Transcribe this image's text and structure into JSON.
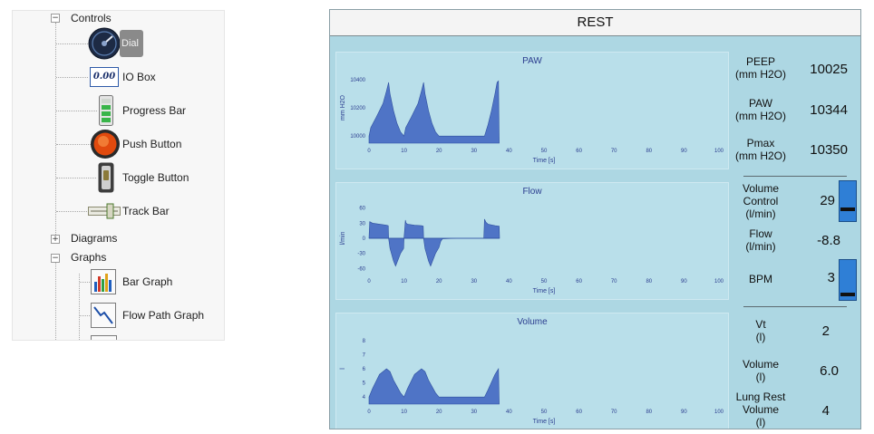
{
  "tree": {
    "controls": {
      "label": "Controls",
      "items": [
        {
          "label": "Dial",
          "icon": "dial-icon"
        },
        {
          "label": "IO Box",
          "icon": "io-box-icon"
        },
        {
          "label": "Progress Bar",
          "icon": "progress-bar-icon"
        },
        {
          "label": "Push Button",
          "icon": "push-button-icon"
        },
        {
          "label": "Toggle Button",
          "icon": "toggle-button-icon"
        },
        {
          "label": "Track Bar",
          "icon": "track-bar-icon"
        }
      ],
      "io_box_icon_text": "0.00"
    },
    "diagrams": {
      "label": "Diagrams"
    },
    "graphs": {
      "label": "Graphs",
      "items": [
        {
          "label": "Bar Graph",
          "icon": "bar-graph-icon"
        },
        {
          "label": "Flow Path Graph",
          "icon": "flow-path-graph-icon"
        }
      ]
    }
  },
  "ventilator": {
    "title": "REST",
    "colors": {
      "panel": "#add7e3",
      "chart_fill": "#4f74c6",
      "slider": "#2f7fd6"
    },
    "readouts": {
      "peep": {
        "label1": "PEEP",
        "label2": "(mm H2O)",
        "value": "10025"
      },
      "paw": {
        "label1": "PAW",
        "label2": "(mm H2O)",
        "value": "10344"
      },
      "pmax": {
        "label1": "Pmax",
        "label2": "(mm H2O)",
        "value": "10350"
      },
      "volume_control": {
        "label1": "Volume",
        "label2": "Control",
        "label3": "(l/min)",
        "value": "29",
        "slider_level": 0.28
      },
      "flow": {
        "label1": "Flow",
        "label2": "(l/min)",
        "value": "-8.8"
      },
      "bpm": {
        "label1": "BPM",
        "value": "3",
        "slider_level": 0.1
      },
      "vt": {
        "label1": "Vt",
        "label2": "(l)",
        "value": "2"
      },
      "volume": {
        "label1": "Volume",
        "label2": "(l)",
        "value": "6.0"
      },
      "lung_rest_volume": {
        "label1": "Lung Rest",
        "label2": "Volume",
        "label3": "(l)",
        "value": "4"
      }
    }
  },
  "chart_data": [
    {
      "type": "area",
      "title": "PAW",
      "xlabel": "Time [s]",
      "ylabel": "mm H2O",
      "xlim": [
        0,
        100
      ],
      "ylim": [
        9950,
        10450
      ],
      "xticks": [
        0,
        10,
        20,
        30,
        40,
        50,
        60,
        70,
        80,
        90,
        100
      ],
      "yticks": [
        10000,
        10200,
        10400
      ],
      "baseline": 9950,
      "series": [
        {
          "x": [
            0,
            0.5,
            2,
            4,
            5,
            5.6,
            6,
            7,
            8,
            9,
            10,
            10.5,
            12,
            14,
            15,
            15.6,
            16,
            17,
            18,
            19,
            20,
            20.5,
            21,
            25,
            30,
            33,
            34,
            35,
            36,
            36.6,
            37,
            37.2
          ],
          "y": [
            10000,
            10060,
            10130,
            10230,
            10320,
            10380,
            10300,
            10180,
            10090,
            10030,
            10000,
            10060,
            10130,
            10230,
            10320,
            10380,
            10300,
            10180,
            10090,
            10030,
            10000,
            10000,
            10000,
            10000,
            10000,
            10000,
            10080,
            10180,
            10300,
            10380,
            10390,
            9950
          ]
        }
      ]
    },
    {
      "type": "area",
      "title": "Flow",
      "xlabel": "Time [s]",
      "ylabel": "l/min",
      "xlim": [
        0,
        100
      ],
      "ylim": [
        -70,
        70
      ],
      "xticks": [
        0,
        10,
        20,
        30,
        40,
        50,
        60,
        70,
        80,
        90,
        100
      ],
      "yticks": [
        60,
        30,
        0,
        -30,
        -60
      ],
      "baseline": 0,
      "series": [
        {
          "x": [
            0,
            0.2,
            1,
            3,
            5,
            5.5,
            5.6,
            6,
            7,
            7.6,
            8,
            9,
            9.9,
            10,
            10.4,
            10.6,
            11,
            13,
            15,
            15.5,
            15.6,
            16,
            17,
            17.6,
            18,
            19,
            20,
            20.5,
            21,
            25,
            30,
            32.8,
            33,
            33.4,
            34,
            36,
            37.2,
            37.3
          ],
          "y": [
            0,
            33,
            30,
            28,
            26,
            25,
            0,
            -20,
            -45,
            -55,
            -48,
            -30,
            -20,
            0,
            36,
            30,
            28,
            26,
            25,
            24,
            0,
            -20,
            -45,
            -55,
            -48,
            -30,
            -18,
            -6,
            -1,
            0,
            0,
            0,
            38,
            32,
            28,
            25,
            24,
            0
          ]
        }
      ]
    },
    {
      "type": "area",
      "title": "Volume",
      "xlabel": "Time [s]",
      "ylabel": "l",
      "xlim": [
        0,
        100
      ],
      "ylim": [
        3.5,
        8.5
      ],
      "xticks": [
        0,
        10,
        20,
        30,
        40,
        50,
        60,
        70,
        80,
        90,
        100
      ],
      "yticks": [
        4,
        5,
        6,
        7,
        8
      ],
      "baseline": 3.5,
      "series": [
        {
          "x": [
            0,
            1,
            3,
            5,
            6,
            7,
            9,
            10,
            11,
            13,
            15,
            16,
            17,
            19,
            20,
            21,
            25,
            30,
            33,
            34,
            36,
            37,
            37.2
          ],
          "y": [
            4,
            4.6,
            5.6,
            6,
            5.8,
            5.2,
            4.3,
            4,
            4.6,
            5.6,
            6,
            5.8,
            5.2,
            4.3,
            4,
            4,
            4,
            4,
            4,
            4.5,
            5.6,
            6,
            3.5
          ]
        }
      ]
    }
  ]
}
